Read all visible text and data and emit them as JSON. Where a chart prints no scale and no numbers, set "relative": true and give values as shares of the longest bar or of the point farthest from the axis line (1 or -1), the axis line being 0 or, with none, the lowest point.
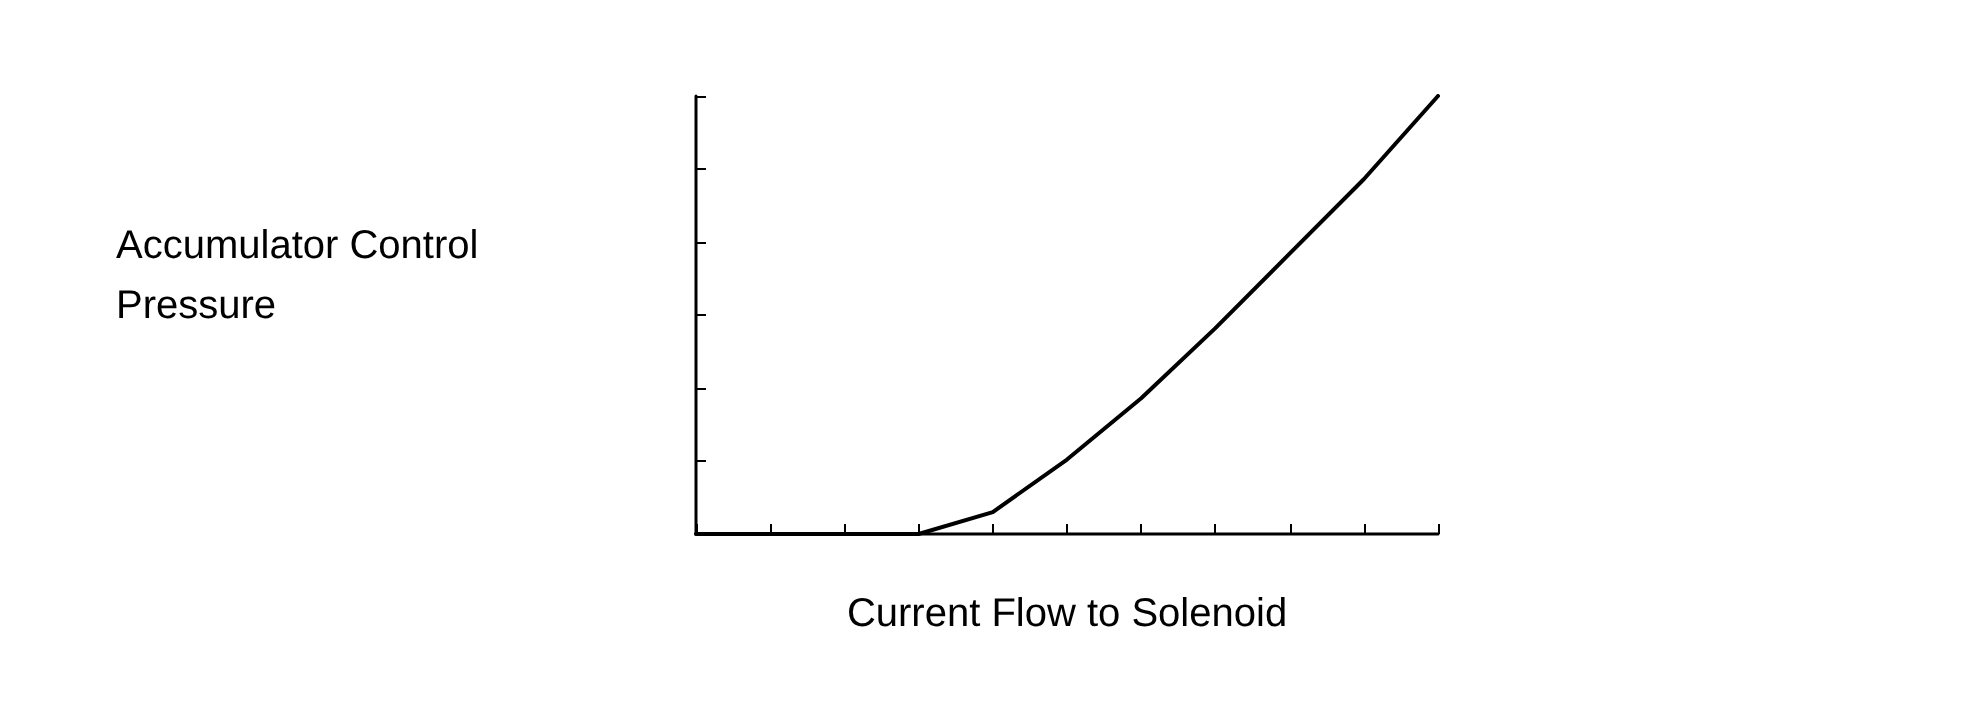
{
  "chart_data": {
    "type": "line",
    "relative": true,
    "xlabel": "Current Flow to Solenoid",
    "annotations": [
      "Accumulator Control Pressure"
    ],
    "categories": [
      null,
      null,
      null,
      null,
      null,
      null,
      null,
      null,
      null,
      null,
      null
    ],
    "series": [
      {
        "color": "#000000",
        "values": [
          0,
          0,
          0,
          0,
          0.05,
          0.17,
          0.31,
          0.47,
          0.64,
          0.81,
          1
        ]
      }
    ],
    "marker": "none",
    "line_style": "solid",
    "grid": false
  }
}
